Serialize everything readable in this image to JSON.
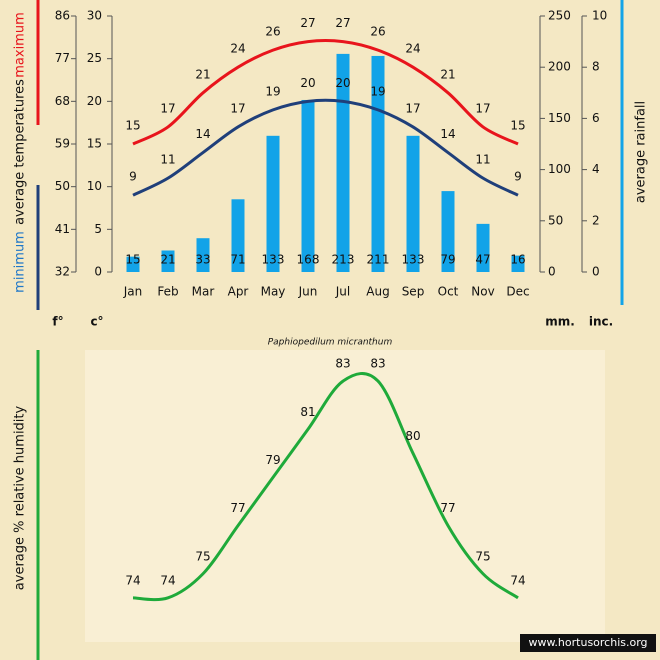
{
  "chart_data": [
    {
      "type": "climate",
      "title": "Paphiopedilum micranthum",
      "categories": [
        "Jan",
        "Feb",
        "Mar",
        "Apr",
        "May",
        "Jun",
        "Jul",
        "Aug",
        "Sep",
        "Oct",
        "Nov",
        "Dec"
      ],
      "series": [
        {
          "name": "maximum",
          "color": "#e8141c",
          "type": "line",
          "axis": "y",
          "values": [
            15,
            17,
            21,
            24,
            26,
            27,
            27,
            26,
            24,
            21,
            17,
            15
          ]
        },
        {
          "name": "minimum",
          "color": "#1f3f7a",
          "type": "line",
          "axis": "y",
          "values": [
            9,
            11,
            14,
            17,
            19,
            20,
            20,
            19,
            17,
            14,
            11,
            9
          ]
        },
        {
          "color": "#12a3e8",
          "type": "bar",
          "axis": "y2",
          "values": [
            15,
            21,
            33,
            71,
            133,
            168,
            213,
            211,
            133,
            79,
            47,
            16
          ]
        }
      ],
      "ylabel": "average temperatures",
      "y2label": "average rainfall",
      "unit_labels": [
        "f°",
        "c°",
        "mm.",
        "inc."
      ],
      "ylim": [
        0,
        30
      ],
      "yticks": [
        0,
        5,
        10,
        15,
        20,
        25,
        30
      ],
      "yflim": [
        32,
        86
      ],
      "yfticks": [
        32,
        41,
        50,
        59,
        68,
        77,
        86
      ],
      "y2lim": [
        0,
        250
      ],
      "y2ticks": [
        0,
        50,
        100,
        150,
        200,
        250
      ],
      "y3lim": [
        0,
        10
      ],
      "y3ticks": [
        0,
        2,
        4,
        6,
        8,
        10
      ]
    },
    {
      "type": "line",
      "ylabel": "average %  relative humidity",
      "color": "#1faa3a",
      "values": [
        74,
        74,
        75,
        77,
        79,
        81,
        83,
        83,
        80,
        77,
        75,
        74
      ],
      "ylim": [
        72,
        84
      ]
    }
  ],
  "watermark": "www.hortusorchis.org"
}
